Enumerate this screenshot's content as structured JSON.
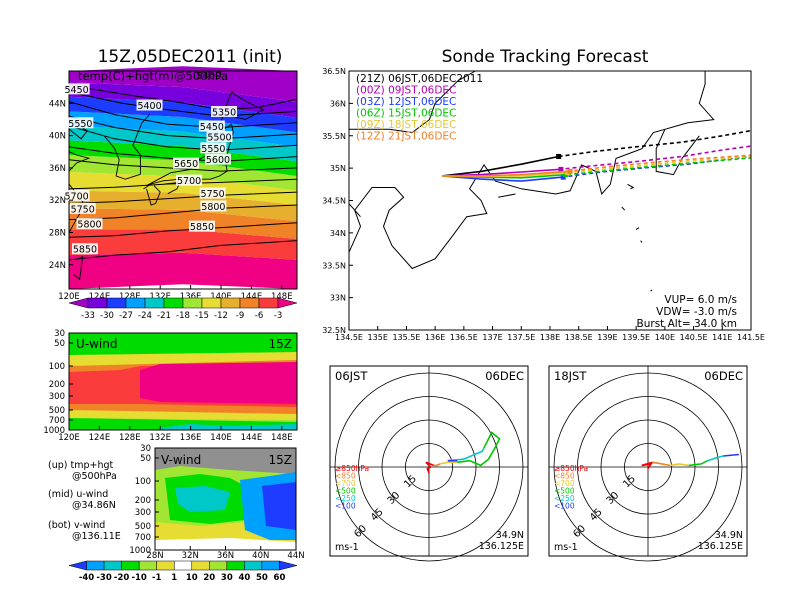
{
  "left_panel": {
    "title": "15Z,05DEC2011 (init)",
    "map_title": "temp(C)+hgt(m)@500hPa",
    "map_title_overlap": "5400",
    "lon_ticks": [
      "120E",
      "124E",
      "128E",
      "132E",
      "136E",
      "140E",
      "144E",
      "148E"
    ],
    "lat_ticks": [
      "44N",
      "40N",
      "36N",
      "32N",
      "28N",
      "24N"
    ],
    "colorbar_labels": [
      "-33",
      "-30",
      "-27",
      "-24",
      "-21",
      "-18",
      "-15",
      "-12",
      "-9",
      "-6",
      "-3"
    ],
    "colorbar_colors": [
      "#a000c8",
      "#7800dc",
      "#1e3cff",
      "#00a0ff",
      "#00c8c8",
      "#00dc00",
      "#a0e632",
      "#e6dc32",
      "#e6af2d",
      "#f08228",
      "#fa3c3c",
      "#f00082"
    ],
    "contour_labels": [
      {
        "text": "5450",
        "lat": 45.6,
        "lon": 121.0
      },
      {
        "text": "5400",
        "lat": 43.6,
        "lon": 130.6
      },
      {
        "text": "5350",
        "lat": 42.8,
        "lon": 140.4
      },
      {
        "text": "5550",
        "lat": 41.4,
        "lon": 121.5
      },
      {
        "text": "5450",
        "lat": 41.0,
        "lon": 138.8
      },
      {
        "text": "5500",
        "lat": 39.7,
        "lon": 139.8
      },
      {
        "text": "5550",
        "lat": 38.3,
        "lon": 139.0
      },
      {
        "text": "5600",
        "lat": 36.9,
        "lon": 139.6
      },
      {
        "text": "5650",
        "lat": 36.4,
        "lon": 135.4
      },
      {
        "text": "5700",
        "lat": 34.3,
        "lon": 135.8
      },
      {
        "text": "5700",
        "lat": 32.4,
        "lon": 121.0
      },
      {
        "text": "5750",
        "lat": 32.7,
        "lon": 138.9
      },
      {
        "text": "5750",
        "lat": 30.8,
        "lon": 121.8
      },
      {
        "text": "5800",
        "lat": 31.1,
        "lon": 139.0
      },
      {
        "text": "5800",
        "lat": 28.9,
        "lon": 122.7
      },
      {
        "text": "5850",
        "lat": 28.6,
        "lon": 137.5
      },
      {
        "text": "5850",
        "lat": 25.8,
        "lon": 122.1
      }
    ]
  },
  "u_panel": {
    "title": "U-wind",
    "time": "15Z",
    "p_ticks": [
      "30",
      "50",
      "100",
      "200",
      "300",
      "500",
      "700",
      "1000"
    ],
    "lon_ticks": [
      "120E",
      "124E",
      "128E",
      "132E",
      "136E",
      "140E",
      "144E",
      "148E"
    ]
  },
  "v_panel": {
    "title": "V-wind",
    "time": "15Z",
    "p_ticks": [
      "30",
      "50",
      "100",
      "200",
      "300",
      "500",
      "700",
      "1000"
    ],
    "lat_ticks": [
      "28N",
      "32N",
      "36N",
      "40N",
      "44N"
    ],
    "colorbar_labels": [
      "-40",
      "-30",
      "-20",
      "-10",
      "-1",
      "1",
      "10",
      "20",
      "30",
      "40",
      "50",
      "60"
    ],
    "colorbar_colors": [
      "#1e3cff",
      "#00a0ff",
      "#00c8c8",
      "#00dc00",
      "#a0e632",
      "#e6dc32",
      "#ffffff",
      "#e6dc32",
      "#a0e632",
      "#00dc00",
      "#00c8c8",
      "#00a0ff",
      "#1e3cff"
    ]
  },
  "legend_notes": [
    {
      "head": "(up) tmp+hgt",
      "sub": "@500hPa"
    },
    {
      "head": "(mid) u-wind",
      "sub": "@34.86N"
    },
    {
      "head": "(bot) v-wind",
      "sub": "@136.11E"
    }
  ],
  "track_panel": {
    "title": "Sonde Tracking Forecast",
    "lon_ticks": [
      "134.5E",
      "135E",
      "135.5E",
      "136E",
      "136.5E",
      "137E",
      "137.5E",
      "138E",
      "138.5E",
      "139E",
      "139.5E",
      "140E",
      "140.5E",
      "141E",
      "141.5E"
    ],
    "lat_ticks": [
      "36.5N",
      "36N",
      "35.5N",
      "35N",
      "34.5N",
      "34N",
      "33.5N",
      "33N",
      "32.5N"
    ],
    "legend": [
      {
        "label": "(21Z) 06JST,06DEC2011",
        "color": "#000000"
      },
      {
        "label": "(00Z) 09JST,06DEC",
        "color": "#b400b4"
      },
      {
        "label": "(03Z) 12JST,06DEC",
        "color": "#1e3cff"
      },
      {
        "label": "(06Z) 15JST,06DEC",
        "color": "#00c800"
      },
      {
        "label": "(09Z) 18JST,06DEC",
        "color": "#e6c832"
      },
      {
        "label": "(12Z) 21JST,06DEC",
        "color": "#f08228"
      }
    ],
    "vup": "VUP= 6.0 m/s",
    "vdw": "VDW= -3.0 m/s",
    "burst": "Burst Alt= 34.0 km"
  },
  "hodographs": [
    {
      "time": "06JST",
      "date": "06DEC",
      "lat": "34.9N",
      "lon": "136.125E",
      "units": "ms-1",
      "ring_labels": [
        "15",
        "30",
        "45",
        "60"
      ]
    },
    {
      "time": "18JST",
      "date": "06DEC",
      "lat": "34.9N",
      "lon": "136.125E",
      "units": "ms-1",
      "ring_labels": [
        "15",
        "30",
        "45",
        "60"
      ]
    }
  ],
  "hodo_legend": [
    {
      "label": "≥850hPa",
      "color": "#f00000"
    },
    {
      "label": "<850",
      "color": "#f08228"
    },
    {
      "label": "<700",
      "color": "#e6c832"
    },
    {
      "label": "<500",
      "color": "#00c800"
    },
    {
      "label": "<250",
      "color": "#00c8c8"
    },
    {
      "label": "<100",
      "color": "#1e3cff"
    }
  ],
  "chart_data": [
    {
      "type": "heatmap",
      "title": "15Z,05DEC2011 (init)",
      "subtitle": "temp(C)+hgt(m)@500hPa",
      "xlim": [
        120,
        150
      ],
      "ylim": [
        21,
        48
      ],
      "color_levels": [
        -33,
        -30,
        -27,
        -24,
        -21,
        -18,
        -15,
        -12,
        -9,
        -6,
        -3
      ],
      "height_contours": [
        5350,
        5400,
        5450,
        5500,
        5550,
        5600,
        5650,
        5700,
        5750,
        5800,
        5850
      ]
    },
    {
      "type": "heatmap",
      "title": "U-wind",
      "xlim": [
        120,
        150
      ],
      "ylim_hPa": [
        1000,
        30
      ]
    },
    {
      "type": "heatmap",
      "title": "V-wind",
      "xlim": [
        28,
        44
      ],
      "ylim_hPa": [
        1000,
        30
      ],
      "color_levels": [
        -40,
        -30,
        -20,
        -10,
        -1,
        1,
        10,
        20,
        30,
        40,
        50,
        60
      ]
    },
    {
      "type": "line",
      "title": "Sonde Tracking Forecast",
      "xlim": [
        134.5,
        141.5
      ],
      "ylim": [
        32.5,
        36.5
      ],
      "series": [
        {
          "name": "(21Z) 06JST,06DEC2011",
          "x": [
            136.12,
            136.8,
            137.5,
            138.15,
            138.8,
            139.5,
            140.3,
            141.0,
            141.5
          ],
          "y": [
            34.88,
            34.95,
            35.06,
            35.18,
            35.26,
            35.33,
            35.4,
            35.5,
            35.58
          ]
        },
        {
          "name": "(00Z) 09JST,06DEC",
          "x": [
            136.12,
            136.8,
            137.5,
            138.15,
            138.8,
            139.5,
            140.3,
            141.0,
            141.5
          ],
          "y": [
            34.88,
            34.9,
            34.94,
            34.98,
            35.04,
            35.1,
            35.18,
            35.28,
            35.34
          ]
        },
        {
          "name": "(03Z) 12JST,06DEC",
          "x": [
            136.12,
            136.8,
            137.5,
            138.2,
            138.9,
            139.6,
            140.4,
            141.0,
            141.5
          ],
          "y": [
            34.88,
            34.83,
            34.8,
            34.86,
            34.94,
            35.0,
            35.06,
            35.13,
            35.18
          ]
        },
        {
          "name": "(06Z) 15JST,06DEC",
          "x": [
            136.12,
            136.8,
            137.5,
            138.3,
            139.0,
            139.7,
            140.5,
            141.5
          ],
          "y": [
            34.88,
            34.86,
            34.85,
            34.9,
            34.96,
            35.02,
            35.08,
            35.16
          ]
        },
        {
          "name": "(09Z) 18JST,06DEC",
          "x": [
            136.12,
            136.8,
            137.5,
            138.3,
            139.0,
            139.7,
            140.5,
            141.5
          ],
          "y": [
            34.88,
            34.87,
            34.88,
            34.93,
            34.99,
            35.05,
            35.11,
            35.18
          ]
        },
        {
          "name": "(12Z) 21JST,06DEC",
          "x": [
            136.12,
            136.8,
            137.5,
            138.3,
            139.0,
            139.7,
            140.5,
            141.5
          ],
          "y": [
            34.88,
            34.88,
            34.9,
            34.95,
            35.02,
            35.08,
            35.14,
            35.2
          ]
        }
      ]
    }
  ]
}
